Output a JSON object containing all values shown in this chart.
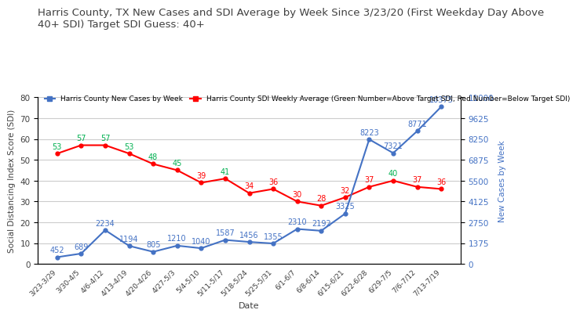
{
  "title": "Harris County, TX New Cases and SDI Average by Week Since 3/23/20 (First Weekday Day Above\n40+ SDI) Target SDI Guess: 40+",
  "xlabel": "Date",
  "ylabel_left": "Social Distancing Index Score (SDI)",
  "ylabel_right": "New Cases by Week",
  "legend_blue": "Harris County New Cases by Week",
  "legend_red": "Harris County SDI Weekly Average (Green Number=Above Target SDI, Red Number=Below Target SDI)",
  "x_labels": [
    "3/23-3/29",
    "3/30-4/5",
    "4/6-4/12",
    "4/13-4/19",
    "4/20-4/26",
    "4/27-5/3",
    "5/4-5/10",
    "5/11-5/17",
    "5/18-5/24",
    "5/25-5/31",
    "6/1-6/7",
    "6/8-6/14",
    "6/15-6/21",
    "6/22-6/28",
    "6/29-7/5",
    "7/6-7/12",
    "7/13-7/19"
  ],
  "sdi_values": [
    53,
    57,
    57,
    53,
    48,
    45,
    39,
    41,
    34,
    36,
    30,
    28,
    32,
    37,
    40,
    37,
    36
  ],
  "cases_values": [
    452,
    689,
    2234,
    1194,
    805,
    1210,
    1040,
    1587,
    1456,
    1355,
    2310,
    2192,
    3325,
    8223,
    7321,
    8771,
    10375
  ],
  "target_sdi": 40,
  "ylim_left": [
    0,
    80
  ],
  "ylim_right": [
    0,
    11000
  ],
  "yticks_left": [
    0,
    10,
    20,
    30,
    40,
    50,
    60,
    70,
    80
  ],
  "yticks_right": [
    0,
    1375,
    2750,
    4125,
    5500,
    6875,
    8250,
    9625,
    11000
  ],
  "background_color": "#ffffff",
  "blue_color": "#4472c4",
  "red_color": "#ff0000",
  "green_label_color": "#00b050",
  "red_label_color": "#ff0000",
  "blue_label_color": "#4472c4",
  "grid_color": "#cccccc",
  "title_color": "#404040",
  "axis_label_color": "#404040",
  "title_fontsize": 9.5,
  "legend_fontsize": 6.5,
  "tick_fontsize": 7.5,
  "annotation_fontsize": 7
}
